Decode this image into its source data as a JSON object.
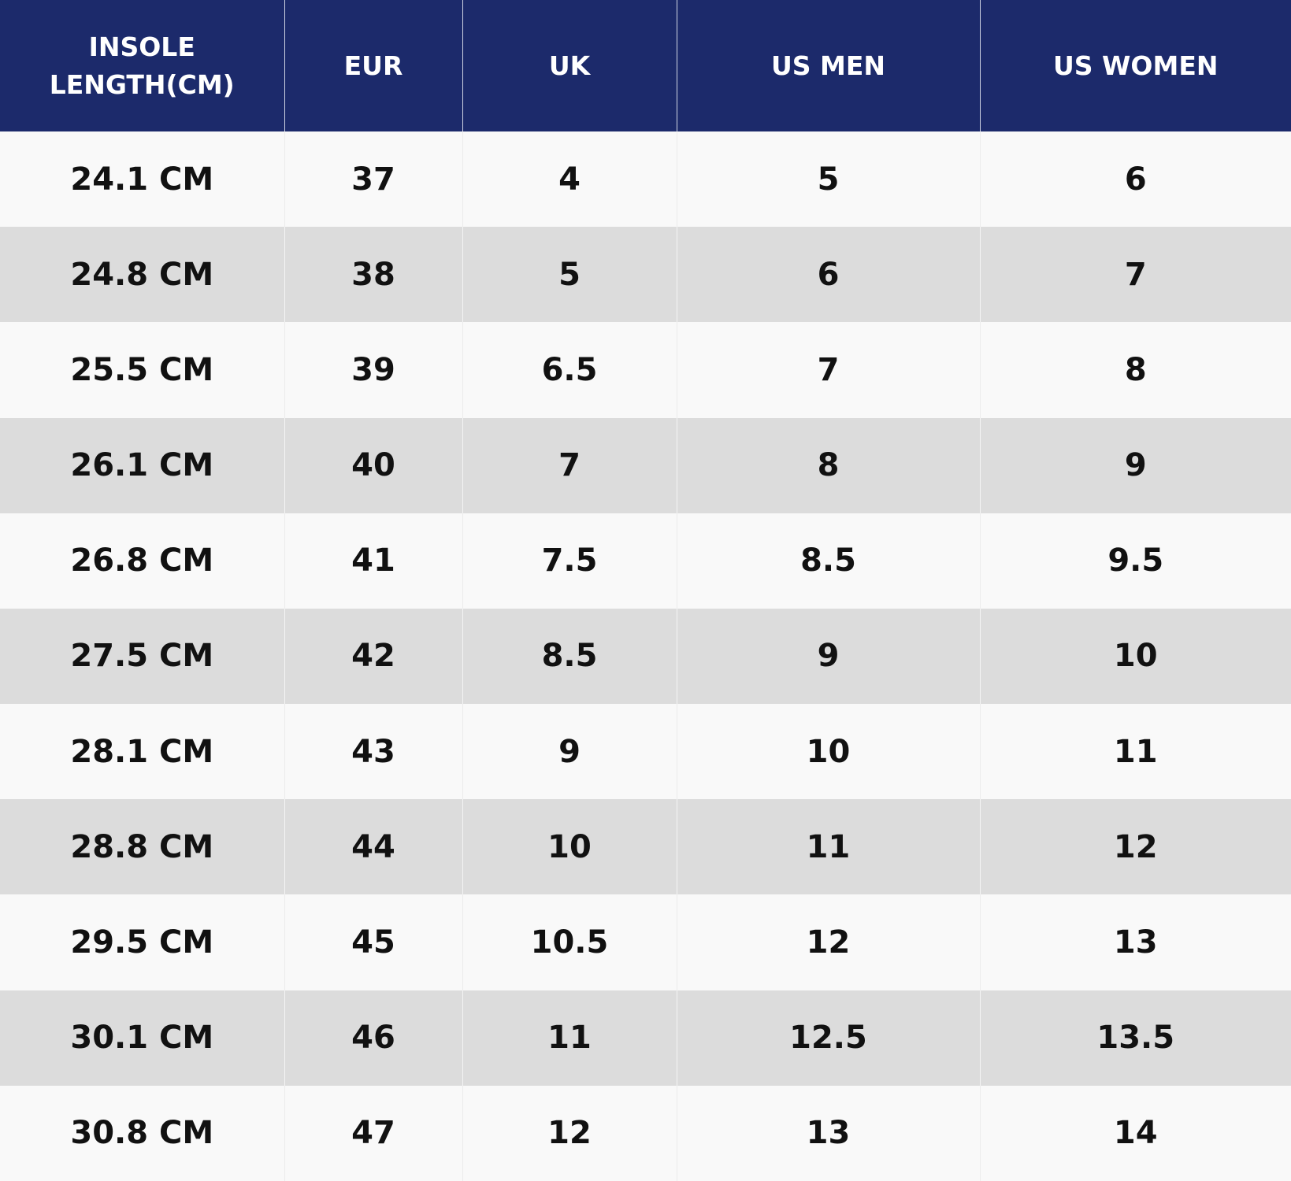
{
  "table": {
    "columns": [
      "INSOLE LENGTH(CM)",
      "EUR",
      "UK",
      "US MEN",
      "US WOMEN"
    ],
    "rows": [
      [
        "24.1 CM",
        "37",
        "4",
        "5",
        "6"
      ],
      [
        "24.8 CM",
        "38",
        "5",
        "6",
        "7"
      ],
      [
        "25.5 CM",
        "39",
        "6.5",
        "7",
        "8"
      ],
      [
        "26.1 CM",
        "40",
        "7",
        "8",
        "9"
      ],
      [
        "26.8 CM",
        "41",
        "7.5",
        "8.5",
        "9.5"
      ],
      [
        "27.5 CM",
        "42",
        "8.5",
        "9",
        "10"
      ],
      [
        "28.1 CM",
        "43",
        "9",
        "10",
        "11"
      ],
      [
        "28.8 CM",
        "44",
        "10",
        "11",
        "12"
      ],
      [
        "29.5 CM",
        "45",
        "10.5",
        "12",
        "13"
      ],
      [
        "30.1 CM",
        "46",
        "11",
        "12.5",
        "13.5"
      ],
      [
        "30.8 CM",
        "47",
        "12",
        "13",
        "14"
      ]
    ]
  }
}
